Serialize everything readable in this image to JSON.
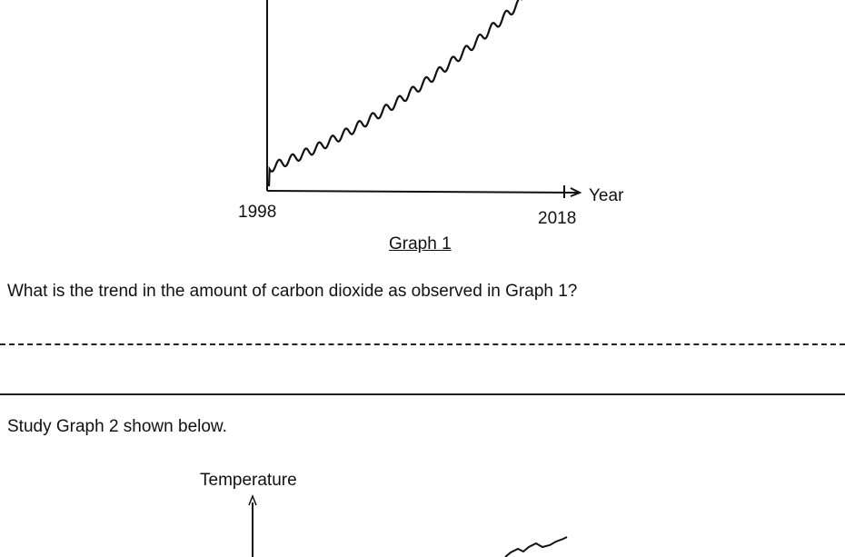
{
  "graph1": {
    "x_start_label": "1998",
    "x_end_label": "2018",
    "x_axis_label": "Year",
    "caption": "Graph 1"
  },
  "question": {
    "text": "What is the trend in the amount of carbon dioxide as observed in Graph 1?"
  },
  "instruction": {
    "text": "Study Graph 2 shown below."
  },
  "graph2": {
    "y_axis_label": "Temperature"
  }
}
